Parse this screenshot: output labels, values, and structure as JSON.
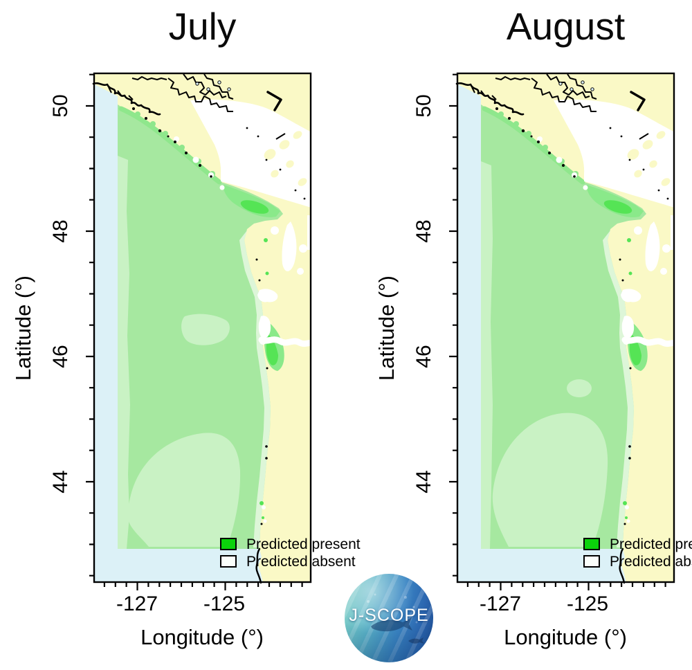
{
  "figure_type": "coastal prediction maps (predicted species presence/absence)",
  "panels": [
    {
      "id": "july",
      "title": "July"
    },
    {
      "id": "august",
      "title": "August"
    }
  ],
  "axes": {
    "y_label": "Latitude (°)",
    "x_label": "Longitude (°)",
    "y_tick_labels": [
      "50",
      "48",
      "46",
      "44"
    ],
    "x_tick_labels": [
      "-127",
      "-125"
    ],
    "lat_major": [
      50,
      48,
      46,
      44
    ],
    "lat_minor_step": 0.5,
    "lon_major": [
      -127,
      -125
    ],
    "lon_minor_step": 0.25
  },
  "legend": {
    "present_label": "Predicted present",
    "absent_label": "Predicted absent"
  },
  "logo": {
    "text": "J-SCOPE"
  },
  "palette": {
    "land": "#FAF9C6",
    "ocean": "#DCF1F7",
    "dom": "#A6E8A0",
    "edge": "#8FE78C",
    "band": "#8AE98A",
    "bandcore": "#55E455",
    "pale": "#DDF6D8",
    "light": "#C9F2C4",
    "present": "#0BD30B",
    "absent": "#FBFFFB",
    "ink": "#000000"
  }
}
